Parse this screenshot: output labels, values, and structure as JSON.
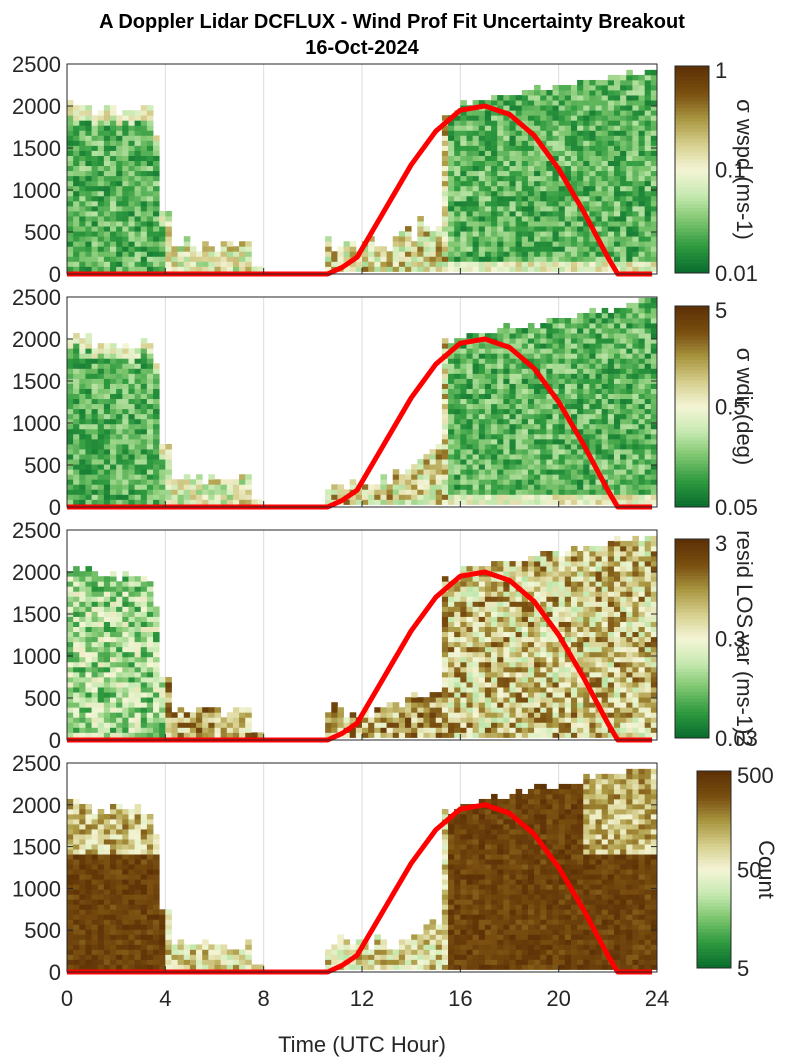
{
  "title": {
    "line1": "A Doppler Lidar DCFLUX - Wind Prof Fit Uncertainty Breakout",
    "line2": "16-Oct-2024"
  },
  "xaxis": {
    "label": "Time (UTC Hour)",
    "ticks": [
      "0",
      "4",
      "8",
      "12",
      "16",
      "20",
      "24"
    ],
    "range": [
      0,
      24
    ]
  },
  "yaxis": {
    "ticks": [
      "0",
      "500",
      "1000",
      "1500",
      "2000",
      "2500"
    ],
    "range": [
      0,
      2500
    ]
  },
  "colors": {
    "red_line": "#ff0000",
    "colormap": [
      "#0a6e2e",
      "#2f9a3f",
      "#7cc56e",
      "#c6e9b0",
      "#f4f5d6",
      "#d6cf8e",
      "#a99640",
      "#7a4f10",
      "#5e3206"
    ]
  },
  "chart_data": [
    {
      "type": "heatmap",
      "colorbar_label": "σ wspd (ms-1)",
      "colorbar_ticks": [
        "1",
        "0.1",
        "0.01"
      ],
      "colorbar_scale": "log",
      "clim": [
        0.01,
        1
      ],
      "profile": "wspd"
    },
    {
      "type": "heatmap",
      "colorbar_label": "σ wdir (deg)",
      "colorbar_ticks": [
        "5",
        "0.5",
        "0.05"
      ],
      "colorbar_scale": "log",
      "clim": [
        0.05,
        5
      ],
      "profile": "wdir"
    },
    {
      "type": "heatmap",
      "colorbar_label": "resid LOS var (ms-1)2",
      "colorbar_ticks": [
        "3",
        "0.3",
        "0.03"
      ],
      "colorbar_scale": "log",
      "clim": [
        0.03,
        3
      ],
      "profile": "resid"
    },
    {
      "type": "heatmap",
      "colorbar_label": "Count",
      "colorbar_ticks": [
        "500",
        "50",
        "5"
      ],
      "colorbar_scale": "log",
      "clim": [
        1,
        500
      ],
      "profile": "count"
    }
  ],
  "boundary_layer_line": {
    "x": [
      0,
      7.4,
      10.6,
      11.2,
      11.8,
      13,
      14,
      15,
      16,
      17,
      18,
      19,
      20,
      21,
      22,
      22.4,
      23.8
    ],
    "y": [
      0,
      0,
      0,
      80,
      200,
      800,
      1300,
      1700,
      1950,
      2000,
      1900,
      1650,
      1250,
      750,
      200,
      0,
      0
    ]
  }
}
